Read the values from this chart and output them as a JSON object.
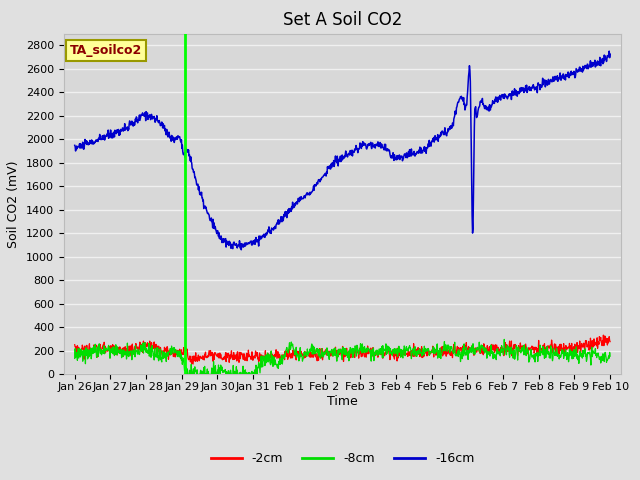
{
  "title": "Set A Soil CO2",
  "ylabel": "Soil CO2 (mV)",
  "xlabel": "Time",
  "annotation_label": "TA_soilco2",
  "ylim": [
    0,
    2900
  ],
  "yticks": [
    0,
    200,
    400,
    600,
    800,
    1000,
    1200,
    1400,
    1600,
    1800,
    2000,
    2200,
    2400,
    2600,
    2800
  ],
  "bg_color": "#e0e0e0",
  "plot_bg_color": "#d8d8d8",
  "grid_color": "#f0f0f0",
  "line_colors": {
    "neg2cm": "#ff0000",
    "neg8cm": "#00dd00",
    "neg16cm": "#0000cc"
  },
  "legend_labels": [
    "-2cm",
    "-8cm",
    "-16cm"
  ],
  "vline_color": "#00ff00",
  "vline_pos": 3.1,
  "xtick_labels": [
    "Jan 26",
    "Jan 27",
    "Jan 28",
    "Jan 29",
    "Jan 30",
    "Jan 31",
    "Feb 1",
    "Feb 2",
    "Feb 3",
    "Feb 4",
    "Feb 5",
    "Feb 6",
    "Feb 7",
    "Feb 8",
    "Feb 9",
    "Feb 10"
  ],
  "xtick_positions": [
    0,
    1,
    2,
    3,
    4,
    5,
    6,
    7,
    8,
    9,
    10,
    11,
    12,
    13,
    14,
    15
  ],
  "xlim": [
    -0.3,
    15.3
  ],
  "title_fontsize": 12,
  "axis_fontsize": 9,
  "tick_fontsize": 8,
  "legend_fontsize": 9,
  "blue_keypoints_t": [
    0,
    0.3,
    0.6,
    0.9,
    1.2,
    1.5,
    1.8,
    2.0,
    2.2,
    2.5,
    2.8,
    3.0,
    3.08,
    3.12,
    3.2,
    3.35,
    3.5,
    3.7,
    3.9,
    4.1,
    4.3,
    4.5,
    4.7,
    5.0,
    5.3,
    5.6,
    5.9,
    6.2,
    6.5,
    6.8,
    7.0,
    7.2,
    7.5,
    7.8,
    8.0,
    8.3,
    8.6,
    8.9,
    9.2,
    9.5,
    9.8,
    10.0,
    10.3,
    10.6,
    10.9,
    11.0,
    11.1,
    11.15,
    11.2,
    11.25,
    11.3,
    11.5,
    11.8,
    12.1,
    12.4,
    12.7,
    13.0,
    13.3,
    13.6,
    13.9,
    14.2,
    14.5,
    14.8,
    15.0
  ],
  "blue_keypoints_v": [
    1920,
    1950,
    1980,
    2020,
    2060,
    2100,
    2170,
    2210,
    2180,
    2100,
    2000,
    1960,
    1870,
    1900,
    1870,
    1700,
    1550,
    1380,
    1250,
    1150,
    1100,
    1090,
    1090,
    1120,
    1170,
    1250,
    1350,
    1450,
    1530,
    1620,
    1700,
    1780,
    1840,
    1890,
    1940,
    1960,
    1950,
    1870,
    1860,
    1890,
    1920,
    1980,
    2060,
    2150,
    2330,
    2370,
    2200,
    1200,
    2160,
    2220,
    2250,
    2280,
    2340,
    2380,
    2410,
    2440,
    2470,
    2500,
    2530,
    2560,
    2600,
    2640,
    2680,
    2720
  ],
  "red_keypoints_t": [
    0,
    0.5,
    1.0,
    1.5,
    2.0,
    2.5,
    3.0,
    3.1,
    3.2,
    3.5,
    4.0,
    4.5,
    5.0,
    5.5,
    6.0,
    6.5,
    7.0,
    7.5,
    8.0,
    8.5,
    9.0,
    9.5,
    10.0,
    10.5,
    11.0,
    11.5,
    12.0,
    12.5,
    13.0,
    13.5,
    14.0,
    14.5,
    15.0
  ],
  "red_keypoints_v": [
    230,
    210,
    220,
    200,
    240,
    200,
    195,
    190,
    150,
    145,
    150,
    155,
    150,
    160,
    165,
    170,
    175,
    180,
    185,
    190,
    180,
    190,
    195,
    200,
    205,
    210,
    215,
    215,
    220,
    225,
    230,
    250,
    290
  ],
  "green_keypoints_t": [
    0,
    0.5,
    1.0,
    1.5,
    2.0,
    2.5,
    3.0,
    3.15,
    3.3,
    3.6,
    3.9,
    4.2,
    4.5,
    4.8,
    5.1,
    5.5,
    5.8,
    6.0,
    6.3,
    6.6,
    6.9,
    7.2,
    7.5,
    7.8,
    8.1,
    8.4,
    8.7,
    9.0,
    9.3,
    9.6,
    9.9,
    10.2,
    10.5,
    10.8,
    11.1,
    11.4,
    11.7,
    12.0,
    12.3,
    12.6,
    12.9,
    13.2,
    13.5,
    13.8,
    14.1,
    14.4,
    14.7,
    15.0
  ],
  "green_keypoints_v": [
    180,
    200,
    220,
    180,
    210,
    160,
    140,
    10,
    5,
    5,
    5,
    30,
    10,
    5,
    50,
    140,
    100,
    220,
    150,
    200,
    170,
    190,
    180,
    200,
    210,
    180,
    200,
    190,
    210,
    180,
    200,
    190,
    220,
    180,
    200,
    210,
    170,
    200,
    180,
    190,
    160,
    185,
    170,
    180,
    160,
    170,
    150,
    165
  ]
}
